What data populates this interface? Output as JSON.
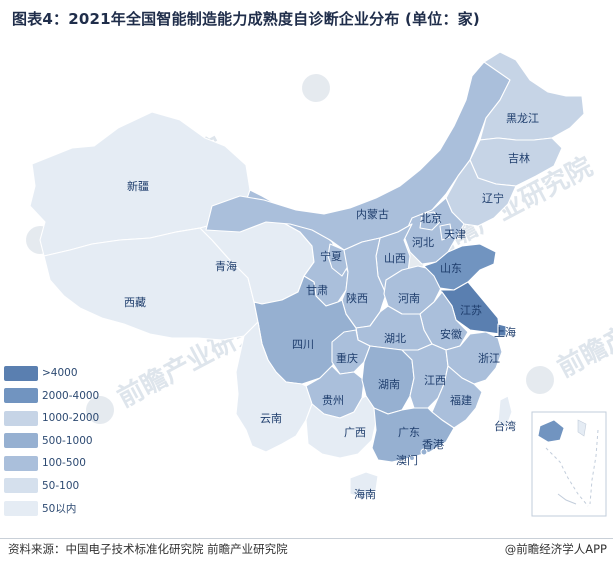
{
  "title": "图表4：2021年全国智能制造能力成熟度自诊断企业分布 (单位：家)",
  "source": "资料来源：中国电子技术标准化研究院 前瞻产业研究院",
  "credit": "@前瞻经济学人APP",
  "watermark": "前瞻产业研究院",
  "colors": {
    "c1": "#5a7fb0",
    "c2": "#7194c0",
    "c3": "#c6d4e6",
    "c4": "#96b0d1",
    "c5": "#aabfdb",
    "c6": "#d5e0ed",
    "c7": "#e5ecf4"
  },
  "legend": [
    {
      "label": ">4000",
      "color": "#5a7fb0"
    },
    {
      "label": "2000-4000",
      "color": "#7194c0"
    },
    {
      "label": "1000-2000",
      "color": "#c6d4e6"
    },
    {
      "label": "500-1000",
      "color": "#96b0d1"
    },
    {
      "label": "100-500",
      "color": "#aabfdb"
    },
    {
      "label": "50-100",
      "color": "#d5e0ed"
    },
    {
      "label": "50以内",
      "color": "#e5ecf4"
    }
  ],
  "provinces": {
    "xinjiang": "新疆",
    "xizang": "西藏",
    "qinghai": "青海",
    "gansu": "甘肃",
    "neimenggu": "内蒙古",
    "heilongjiang": "黑龙江",
    "jilin": "吉林",
    "liaoning": "辽宁",
    "beijing": "北京",
    "tianjin": "天津",
    "hebei": "河北",
    "shanxi": "山西",
    "ningxia": "宁夏",
    "shaanxi": "陕西",
    "henan": "河南",
    "shandong": "山东",
    "jiangsu": "江苏",
    "shanghai": "上海",
    "anhui": "安徽",
    "hubei": "湖北",
    "sichuan": "四川",
    "chongqing": "重庆",
    "zhejiang": "浙江",
    "hunan": "湖南",
    "jiangxi": "江西",
    "fujian": "福建",
    "guizhou": "贵州",
    "yunnan": "云南",
    "guangxi": "广西",
    "guangdong": "广东",
    "xianggang": "香港",
    "aomen": "澳门",
    "taiwan": "台湾",
    "hainan": "海南"
  }
}
